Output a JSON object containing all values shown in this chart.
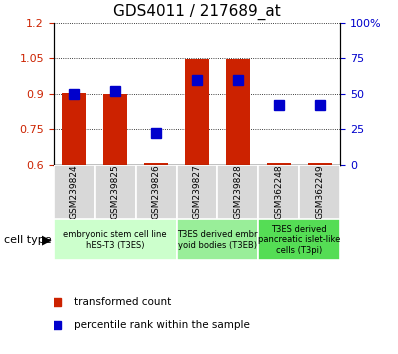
{
  "title": "GDS4011 / 217689_at",
  "samples": [
    "GSM239824",
    "GSM239825",
    "GSM239826",
    "GSM239827",
    "GSM239828",
    "GSM362248",
    "GSM362249"
  ],
  "transformed_count": [
    0.905,
    0.9,
    0.605,
    1.046,
    1.048,
    0.605,
    0.607
  ],
  "percentile_rank_pct": [
    50,
    52,
    22,
    60,
    60,
    42,
    42
  ],
  "ylim_left": [
    0.6,
    1.2
  ],
  "ylim_right": [
    0,
    100
  ],
  "yticks_left": [
    0.6,
    0.75,
    0.9,
    1.05,
    1.2
  ],
  "yticks_right": [
    0,
    25,
    50,
    75,
    100
  ],
  "ytick_labels_left": [
    "0.6",
    "0.75",
    "0.9",
    "1.05",
    "1.2"
  ],
  "ytick_labels_right": [
    "0",
    "25",
    "50",
    "75",
    "100%"
  ],
  "bar_color": "#cc2200",
  "dot_color": "#0000cc",
  "cell_type_groups": [
    {
      "label": "embryonic stem cell line\nhES-T3 (T3ES)",
      "start": 0,
      "end": 3,
      "color": "#ccffcc"
    },
    {
      "label": "T3ES derived embr\nyoid bodies (T3EB)",
      "start": 3,
      "end": 5,
      "color": "#99ee99"
    },
    {
      "label": "T3ES derived\npancreatic islet-like\ncells (T3pi)",
      "start": 5,
      "end": 7,
      "color": "#55dd55"
    }
  ],
  "cell_type_label": "cell type",
  "legend_red": "transformed count",
  "legend_blue": "percentile rank within the sample",
  "tick_color_left": "#cc2200",
  "tick_color_right": "#0000cc",
  "bar_bottom": 0.6,
  "bar_width": 0.6,
  "dot_marker_size": 7,
  "title_fontsize": 11,
  "axis_fontsize": 8,
  "sample_fontsize": 6.5,
  "cell_type_fontsize": 6,
  "legend_fontsize": 7.5
}
